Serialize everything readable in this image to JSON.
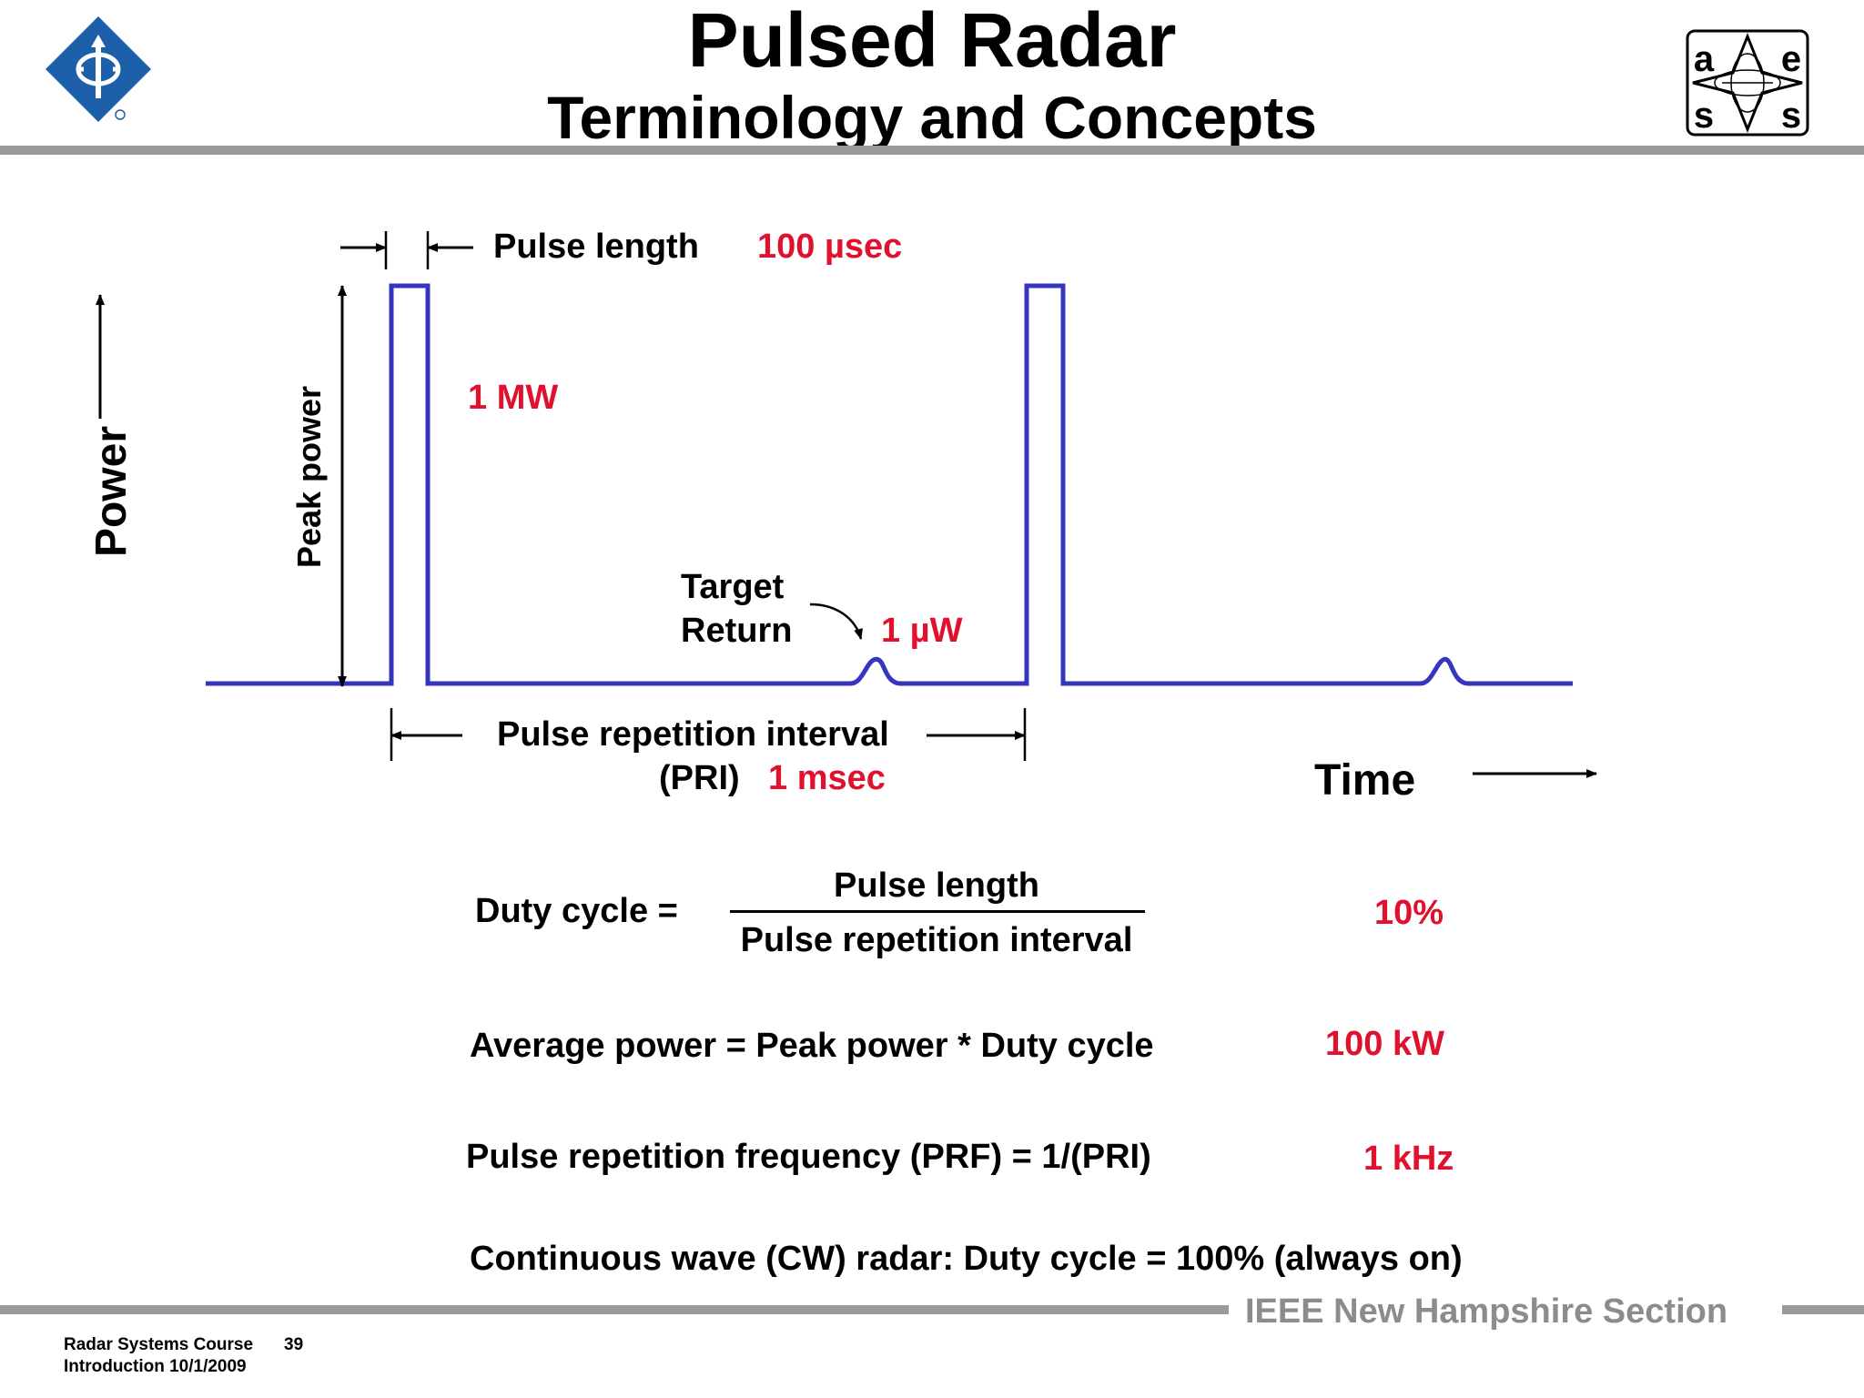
{
  "slide": {
    "title": "Pulsed Radar",
    "subtitle": "Terminology and Concepts"
  },
  "logos": {
    "left_icon": "ieee-diamond-logo",
    "right_icon": "aess-logo",
    "right_letters": [
      "a",
      "e",
      "s",
      "s"
    ]
  },
  "diagram": {
    "y_axis_label": "Power",
    "x_axis_label": "Time",
    "pulse_length_label": "Pulse length",
    "pulse_length_value": "100 µsec",
    "peak_power_label": "Peak power",
    "peak_power_value": "1  MW",
    "target_return_line1": "Target",
    "target_return_line2": "Return",
    "target_return_value": "1 µW",
    "pri_label_line1": "Pulse repetition interval",
    "pri_label_line2": "(PRI)",
    "pri_value": "1 msec",
    "waveform_color": "#3535c0",
    "value_color": "#e0102e"
  },
  "formulas": {
    "duty_cycle_lhs": "Duty cycle =",
    "duty_cycle_numerator": "Pulse length",
    "duty_cycle_denominator": "Pulse repetition interval",
    "duty_cycle_value": "10%",
    "average_power": "Average power = Peak power * Duty cycle",
    "average_power_value": "100 kW",
    "prf": "Pulse repetition frequency (PRF) = 1/(PRI)",
    "prf_value": "1 kHz",
    "cw": "Continuous wave (CW) radar:  Duty cycle = 100%  (always on)"
  },
  "footer": {
    "section": "IEEE New Hampshire Section",
    "course": "Radar Systems Course",
    "page": "39",
    "lecture": "Introduction  10/1/2009"
  }
}
